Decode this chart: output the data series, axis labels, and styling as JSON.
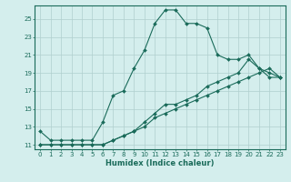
{
  "xlabel": "Humidex (Indice chaleur)",
  "ylabel": "",
  "bg_color": "#d4eeed",
  "grid_color": "#b0cfce",
  "line_color": "#1a6b5a",
  "xlim": [
    -0.5,
    23.5
  ],
  "ylim": [
    10.5,
    26.5
  ],
  "yticks": [
    11,
    13,
    15,
    17,
    19,
    21,
    23,
    25
  ],
  "xticks": [
    0,
    1,
    2,
    3,
    4,
    5,
    6,
    7,
    8,
    9,
    10,
    11,
    12,
    13,
    14,
    15,
    16,
    17,
    18,
    19,
    20,
    21,
    22,
    23
  ],
  "line1_x": [
    0,
    1,
    2,
    3,
    4,
    5,
    6,
    7,
    8,
    9,
    10,
    11,
    12,
    13,
    14,
    15,
    16,
    17,
    18,
    19,
    20,
    21,
    22,
    23
  ],
  "line1_y": [
    12.5,
    11.5,
    11.5,
    11.5,
    11.5,
    11.5,
    13.5,
    16.5,
    17.0,
    19.5,
    21.5,
    24.5,
    26.0,
    26.0,
    24.5,
    24.5,
    24.0,
    21.0,
    20.5,
    20.5,
    21.0,
    19.5,
    19.0,
    18.5
  ],
  "line2_x": [
    0,
    1,
    2,
    3,
    4,
    5,
    6,
    7,
    8,
    9,
    10,
    11,
    12,
    13,
    14,
    15,
    16,
    17,
    18,
    19,
    20,
    21,
    22,
    23
  ],
  "line2_y": [
    11.0,
    11.0,
    11.0,
    11.0,
    11.0,
    11.0,
    11.0,
    11.5,
    12.0,
    12.5,
    13.0,
    14.0,
    14.5,
    15.0,
    15.5,
    16.0,
    16.5,
    17.0,
    17.5,
    18.0,
    18.5,
    19.0,
    19.5,
    18.5
  ],
  "line3_x": [
    0,
    1,
    2,
    3,
    4,
    5,
    6,
    7,
    8,
    9,
    10,
    11,
    12,
    13,
    14,
    15,
    16,
    17,
    18,
    19,
    20,
    21,
    22,
    23
  ],
  "line3_y": [
    11.0,
    11.0,
    11.0,
    11.0,
    11.0,
    11.0,
    11.0,
    11.5,
    12.0,
    12.5,
    13.5,
    14.5,
    15.5,
    15.5,
    16.0,
    16.5,
    17.5,
    18.0,
    18.5,
    19.0,
    20.5,
    19.5,
    18.5,
    18.5
  ],
  "tick_fontsize": 5.0,
  "xlabel_fontsize": 6.0
}
